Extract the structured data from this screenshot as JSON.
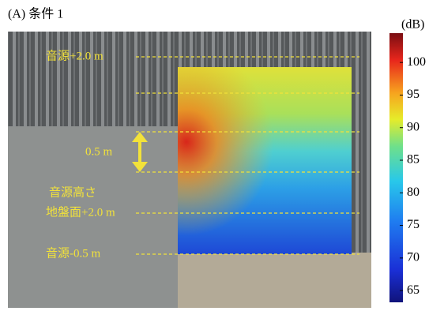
{
  "title": "(A) 条件 1",
  "colorbar": {
    "unit": "(dB)",
    "lim": [
      63.2,
      104.5
    ],
    "ticks": [
      65,
      70,
      75,
      80,
      85,
      90,
      95,
      100
    ]
  },
  "annotations": {
    "source_plus_2": "音源+2.0 m",
    "interval": "0.5 m",
    "source_height": "音源高さ",
    "ground_plus_2": "地盤面+2.0 m",
    "source_minus_05": "音源-0.5 m"
  }
}
